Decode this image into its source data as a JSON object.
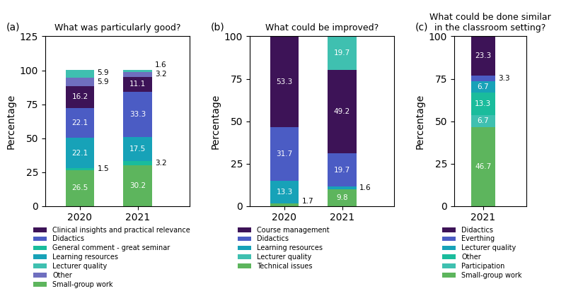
{
  "chart_data": [
    {
      "type": "bar",
      "stacked": true,
      "title": "What was particularly good?",
      "annotations": [
        "(a)"
      ],
      "y_label": "Percentage",
      "categories": [
        "2020",
        "2021"
      ],
      "series": [
        {
          "name": "Small-group work",
          "color": "#5db55d",
          "values": [
            26.5,
            30.2
          ]
        },
        {
          "name": "General comment - great seminar",
          "color": "#1abc9c",
          "values": [
            1.5,
            3.2
          ]
        },
        {
          "name": "Learning resources",
          "color": "#17a2b8",
          "values": [
            22.1,
            17.5
          ]
        },
        {
          "name": "Didactics",
          "color": "#4b5cc4",
          "values": [
            22.1,
            33.3
          ]
        },
        {
          "name": "Clinical insights and practical relevance",
          "color": "#3d1357",
          "values": [
            16.2,
            11.1
          ]
        },
        {
          "name": "Other",
          "color": "#6f6fbf",
          "values": [
            5.9,
            3.2
          ]
        },
        {
          "name": "Lecturer quality",
          "color": "#3fc0b0",
          "values": [
            5.9,
            1.6
          ]
        }
      ],
      "ylim": [
        0,
        125
      ],
      "yticks": [
        0,
        25,
        50,
        75,
        100,
        125
      ],
      "grid": false,
      "legend": "upper left",
      "data_labels": true
    },
    {
      "type": "bar",
      "stacked": true,
      "title": "What could be improved?",
      "annotations": [
        "(b)"
      ],
      "y_label": "Percentage",
      "categories": [
        "2020",
        "2021"
      ],
      "series": [
        {
          "name": "Technical issues",
          "color": "#5db55d",
          "values": [
            1.7,
            9.8
          ]
        },
        {
          "name": "Learning resources",
          "color": "#17a2b8",
          "values": [
            13.3,
            1.6
          ]
        },
        {
          "name": "Didactics",
          "color": "#4b5cc4",
          "values": [
            31.7,
            19.7
          ]
        },
        {
          "name": "Course management",
          "color": "#3d1357",
          "values": [
            53.3,
            49.2
          ]
        },
        {
          "name": "Lecturer quality",
          "color": "#3fc0b0",
          "values": [
            0.0,
            19.7
          ],
          "value_labels": [
            null,
            "19.7"
          ]
        }
      ],
      "ylim": [
        0,
        100
      ],
      "yticks": [
        0,
        25,
        50,
        75,
        100
      ],
      "grid": false,
      "legend": "upper left",
      "data_labels": true
    },
    {
      "type": "bar",
      "stacked": true,
      "title": "What could be done similar\nin the classroom setting?",
      "annotations": [
        "(c)"
      ],
      "y_label": "Percentage",
      "categories": [
        "2021"
      ],
      "series": [
        {
          "name": "Small-group work",
          "color": "#5db55d",
          "values": [
            46.7
          ]
        },
        {
          "name": "Participation",
          "color": "#3fc0b0",
          "values": [
            6.7
          ]
        },
        {
          "name": "Other",
          "color": "#1abc9c",
          "values": [
            13.3
          ]
        },
        {
          "name": "Lecturer quality",
          "color": "#17a2b8",
          "values": [
            6.7
          ]
        },
        {
          "name": "Everthing",
          "color": "#4b5cc4",
          "values": [
            3.3
          ]
        },
        {
          "name": "Didactics",
          "color": "#3d1357",
          "values": [
            23.3
          ]
        }
      ],
      "ylim": [
        0,
        100
      ],
      "yticks": [
        0,
        25,
        50,
        75,
        100
      ],
      "grid": false,
      "legend": "upper left",
      "data_labels": true
    }
  ]
}
